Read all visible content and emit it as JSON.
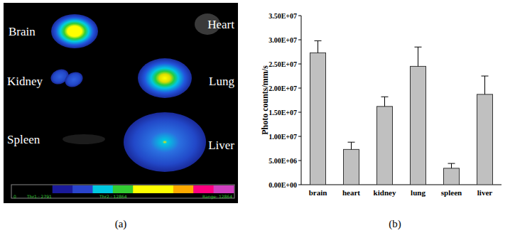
{
  "chart_data": {
    "type": "bar",
    "caption": "(b)",
    "y_label": "Photo counts/mm/s",
    "categories": [
      "brain",
      "heart",
      "kidney",
      "lung",
      "spleen",
      "liver"
    ],
    "values": [
      27300000,
      7300000,
      16200000,
      24500000,
      3400000,
      18700000
    ],
    "errors": [
      2500000,
      1500000,
      2000000,
      4000000,
      1000000,
      3800000
    ],
    "color": "#c0c0c0",
    "ylim": [
      0,
      35000000
    ],
    "yticks": [
      {
        "value": 0,
        "label": "0.00E+00"
      },
      {
        "value": 5000000,
        "label": "5.00E+06"
      },
      {
        "value": 10000000,
        "label": "1.00E+07"
      },
      {
        "value": 15000000,
        "label": "1.50E+07"
      },
      {
        "value": 20000000,
        "label": "2.00E+07"
      },
      {
        "value": 25000000,
        "label": "2.50E+07"
      },
      {
        "value": 30000000,
        "label": "3.00E+07"
      },
      {
        "value": 35000000,
        "label": "3.50E+07"
      }
    ],
    "grid": false
  },
  "image_panel": {
    "caption": "(a)",
    "organs": [
      "Brain",
      "Heart",
      "Kidney",
      "Lung",
      "Spleen",
      "Liver"
    ],
    "colorbar_labels": [
      "0",
      "Thr1.: 2791",
      "Thr2.: 12864",
      "Range: 12864"
    ]
  }
}
